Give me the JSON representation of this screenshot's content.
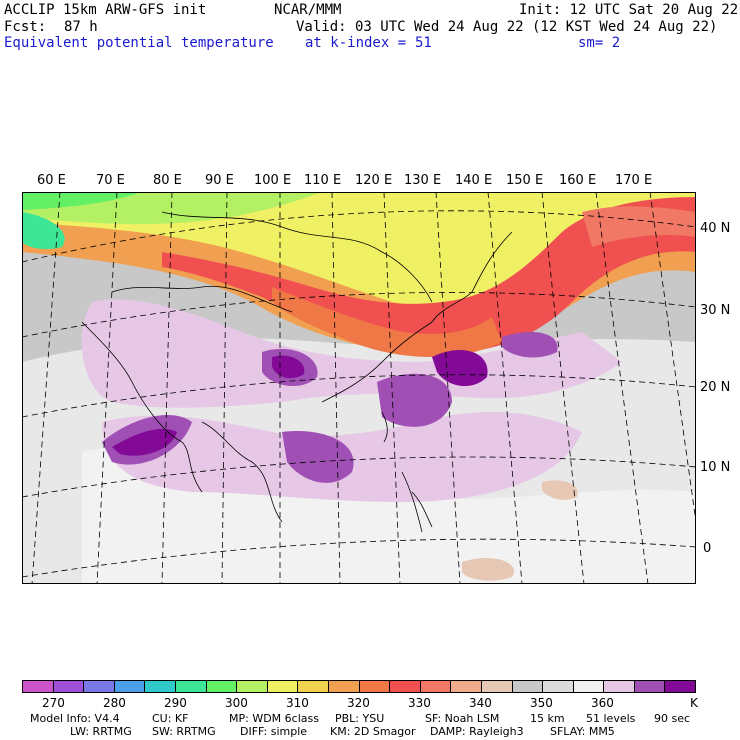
{
  "header": {
    "model_title": "ACCLIP 15km ARW-GFS init",
    "org": "NCAR/MMM",
    "init_time": "Init: 12 UTC Sat 20 Aug 22",
    "forecast_label": "Fcst:",
    "forecast_value": "87 h",
    "valid_time": "Valid: 03 UTC Wed 24 Aug 22 (12 KST Wed 24 Aug 22)",
    "field_name": "Equivalent potential temperature",
    "level_label": "at k-index =",
    "level_value": "51",
    "smooth": "sm= 2"
  },
  "map": {
    "longitude_labels": [
      "60 E",
      "70 E",
      "80 E",
      "90 E",
      "100 E",
      "110 E",
      "120 E",
      "130 E",
      "140 E",
      "150 E",
      "160 E",
      "170 E"
    ],
    "latitude_labels": [
      "40 N",
      "30 N",
      "20 N",
      "10 N",
      "0"
    ]
  },
  "colorbar": {
    "unit": "K",
    "tick_labels": [
      "270",
      "280",
      "290",
      "300",
      "310",
      "320",
      "330",
      "340",
      "350",
      "360"
    ],
    "colors": [
      "#cc55cc",
      "#a050d8",
      "#7a78e6",
      "#4aa0e6",
      "#2ec8c8",
      "#3ce696",
      "#64f064",
      "#b4f064",
      "#f0f064",
      "#f0d250",
      "#f0a050",
      "#f07846",
      "#f05050",
      "#f07864",
      "#f0aa8c",
      "#e6c8b4",
      "#c8c8c8",
      "#dcdcdc",
      "#f0f0f0",
      "#e6c8e6",
      "#a050b4",
      "#820a96"
    ]
  },
  "model_info": {
    "line1": [
      "Model Info: V4.4",
      "CU: KF",
      "MP: WDM 6class",
      "PBL: YSU",
      "SF: Noah LSM",
      "15 km",
      "51 levels",
      "90 sec"
    ],
    "line2": [
      "LW: RRTMG",
      "SW: RRTMG",
      "DIFF: simple",
      "KM: 2D Smagor",
      "DAMP: Rayleigh3",
      "SFLAY: MM5"
    ]
  }
}
